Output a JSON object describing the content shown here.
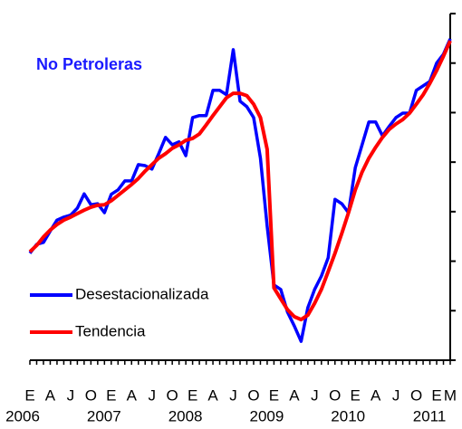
{
  "chart_data": {
    "type": "line",
    "title": "No Petroleras",
    "categories": [
      "E",
      null,
      null,
      "A",
      null,
      null,
      "J",
      null,
      null,
      "O",
      null,
      null,
      "E",
      null,
      null,
      "A",
      null,
      null,
      "J",
      null,
      null,
      "O",
      null,
      null,
      "E",
      null,
      null,
      "A",
      null,
      null,
      "J",
      null,
      null,
      "O",
      null,
      null,
      "E",
      null,
      null,
      "A",
      null,
      null,
      "J",
      null,
      null,
      "O",
      null,
      null,
      "E",
      null,
      null,
      "A",
      null,
      null,
      "J",
      null,
      null,
      "O",
      null,
      null,
      "E",
      null,
      "M"
    ],
    "years": [
      "2006",
      "2007",
      "2008",
      "2009",
      "2010",
      "2011"
    ],
    "series": [
      {
        "name": "Desestacionalizada",
        "color": "#0000ff",
        "values": [
          2.16,
          2.34,
          2.38,
          2.61,
          2.83,
          2.89,
          2.93,
          3.07,
          3.36,
          3.14,
          3.16,
          2.98,
          3.35,
          3.44,
          3.62,
          3.62,
          3.95,
          3.93,
          3.86,
          4.17,
          4.5,
          4.35,
          4.41,
          4.13,
          4.9,
          4.94,
          4.94,
          5.45,
          5.45,
          5.36,
          6.27,
          5.23,
          5.12,
          4.9,
          4.08,
          2.71,
          1.52,
          1.43,
          0.97,
          0.69,
          0.38,
          1.06,
          1.43,
          1.7,
          2.07,
          3.25,
          3.16,
          2.98,
          3.89,
          4.35,
          4.81,
          4.81,
          4.53,
          4.72,
          4.9,
          4.99,
          4.99,
          5.45,
          5.54,
          5.63,
          6.0,
          6.18,
          6.49
        ]
      },
      {
        "name": "Tendencia",
        "color": "#ff0000",
        "values": [
          2.19,
          2.32,
          2.49,
          2.63,
          2.74,
          2.83,
          2.89,
          2.96,
          3.03,
          3.09,
          3.13,
          3.14,
          3.22,
          3.33,
          3.44,
          3.55,
          3.67,
          3.82,
          3.95,
          4.08,
          4.17,
          4.28,
          4.35,
          4.44,
          4.48,
          4.57,
          4.75,
          4.94,
          5.12,
          5.3,
          5.39,
          5.39,
          5.34,
          5.17,
          4.9,
          4.26,
          1.46,
          1.24,
          1.02,
          0.88,
          0.82,
          0.91,
          1.15,
          1.43,
          1.79,
          2.16,
          2.56,
          2.98,
          3.44,
          3.8,
          4.08,
          4.3,
          4.5,
          4.66,
          4.77,
          4.86,
          4.99,
          5.17,
          5.36,
          5.59,
          5.85,
          6.14,
          6.45
        ]
      }
    ],
    "ylim": [
      0,
      7
    ],
    "yticks": [
      0,
      1,
      2,
      3,
      4,
      5,
      6,
      7
    ],
    "legend": "lower-left"
  }
}
